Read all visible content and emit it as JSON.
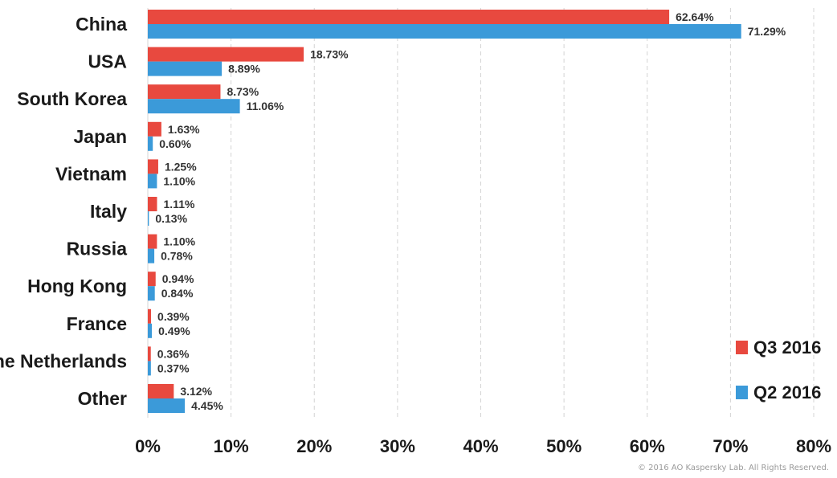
{
  "chart_data": {
    "type": "bar",
    "orientation": "horizontal",
    "categories": [
      "China",
      "USA",
      "South Korea",
      "Japan",
      "Vietnam",
      "Italy",
      "Russia",
      "Hong Kong",
      "France",
      "the Netherlands",
      "Other"
    ],
    "series": [
      {
        "name": "Q3 2016",
        "color": "#e8493f",
        "values": [
          62.64,
          18.73,
          8.73,
          1.63,
          1.25,
          1.11,
          1.1,
          0.94,
          0.39,
          0.36,
          3.12
        ],
        "labels": [
          "62.64%",
          "18.73%",
          "8.73%",
          "1.63%",
          "1.25%",
          "1.11%",
          "1.10%",
          "0.94%",
          "0.39%",
          "0.36%",
          "3.12%"
        ]
      },
      {
        "name": "Q2 2016",
        "color": "#3b9ad9",
        "values": [
          71.29,
          8.89,
          11.06,
          0.6,
          1.1,
          0.13,
          0.78,
          0.84,
          0.49,
          0.37,
          4.45
        ],
        "labels": [
          "71.29%",
          "8.89%",
          "11.06%",
          "0.60%",
          "1.10%",
          "0.13%",
          "0.78%",
          "0.84%",
          "0.49%",
          "0.37%",
          "4.45%"
        ]
      }
    ],
    "xlim": [
      0,
      80
    ],
    "xticks": [
      0,
      10,
      20,
      30,
      40,
      50,
      60,
      70,
      80
    ],
    "xtick_labels": [
      "0%",
      "10%",
      "20%",
      "30%",
      "40%",
      "50%",
      "60%",
      "70%",
      "80%"
    ],
    "grid": "vertical-dashed",
    "legend_position": "bottom-right"
  },
  "copyright": "© 2016 AO Kaspersky Lab. All Rights Reserved."
}
